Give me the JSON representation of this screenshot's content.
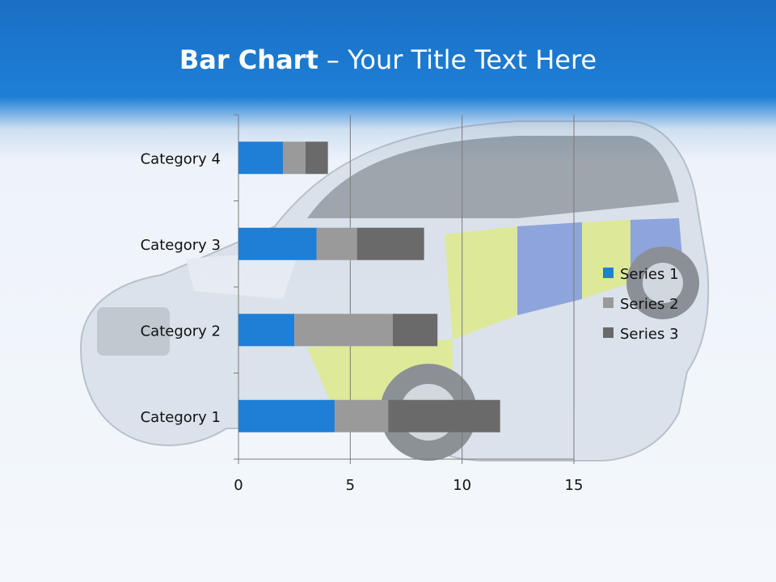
{
  "slide": {
    "title_bold": "Bar Chart",
    "title_dash": " – ",
    "title_rest": "Your Title Text Here"
  },
  "chart_data": {
    "type": "bar",
    "orientation": "horizontal",
    "stacked": true,
    "categories": [
      "Category 1",
      "Category 2",
      "Category 3",
      "Category 4"
    ],
    "series": [
      {
        "name": "Series 1",
        "values": [
          4.3,
          2.5,
          3.5,
          2.0
        ],
        "color": "#1f7fd6"
      },
      {
        "name": "Series 2",
        "values": [
          2.4,
          4.4,
          1.8,
          1.0
        ],
        "color": "#9a9a9a"
      },
      {
        "name": "Series 3",
        "values": [
          5.0,
          2.0,
          3.0,
          1.0
        ],
        "color": "#6a6a6a"
      }
    ],
    "x_ticks": [
      0,
      5,
      10,
      15
    ],
    "xlim": [
      0,
      15
    ],
    "grid": true,
    "legend_position": "right"
  }
}
